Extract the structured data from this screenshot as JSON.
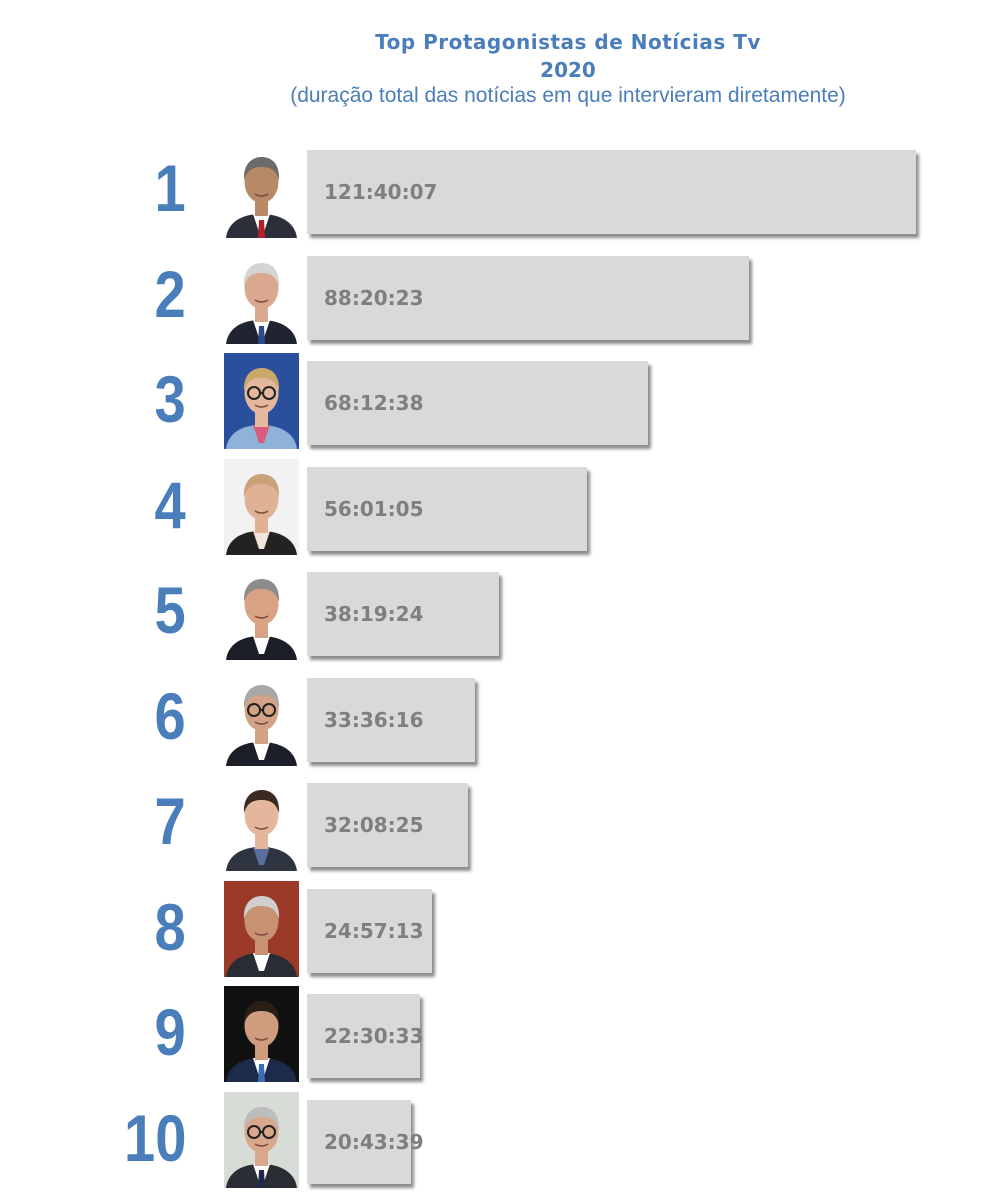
{
  "chart_data": {
    "type": "bar",
    "orientation": "horizontal",
    "title": "Top Protagonistas  de Notícias  Tv",
    "subtitle_year": "2020",
    "subtitle": "(duração total das notícias em que intervieram diretamente)",
    "categories": [
      "1",
      "2",
      "3",
      "4",
      "5",
      "6",
      "7",
      "8",
      "9",
      "10"
    ],
    "labels": [
      "121:40:07",
      "88:20:23",
      "68:12:38",
      "56:01:05",
      "38:19:24",
      "33:36:16",
      "32:08:25",
      "24:57:13",
      "22:30:33",
      "20:43:39"
    ],
    "values_hours": [
      121.669,
      88.34,
      68.211,
      56.018,
      38.323,
      33.604,
      32.14,
      24.954,
      22.509,
      20.728
    ],
    "xlim": [
      0,
      121.669
    ],
    "grid": false,
    "legend": "none",
    "colors": {
      "title": "#4a7ebb",
      "rank": "#4a7ebb",
      "bar": "#d9d9d9",
      "label": "#7f7f7f"
    },
    "photos": [
      {
        "bg": "#ffffff",
        "skin": "#b88966",
        "hair": "#6b6b6b",
        "suit": "#2b2f3a",
        "shirt": "#ffffff",
        "tie": "#b3202a",
        "glasses": false
      },
      {
        "bg": "#ffffff",
        "skin": "#d9a88e",
        "hair": "#d4d4d4",
        "suit": "#1f2430",
        "shirt": "#ffffff",
        "tie": "#2d4a8a",
        "glasses": false
      },
      {
        "bg": "#2a4f9c",
        "skin": "#e3b89c",
        "hair": "#c9a86a",
        "suit": "#8fb2d8",
        "shirt": "#d95c7a",
        "tie": "",
        "glasses": true
      },
      {
        "bg": "#f2f2f2",
        "skin": "#e0b194",
        "hair": "#c9a27a",
        "suit": "#222222",
        "shirt": "#f0e6dc",
        "tie": "",
        "glasses": false
      },
      {
        "bg": "#ffffff",
        "skin": "#d8a385",
        "hair": "#8c8c8c",
        "suit": "#1b1e26",
        "shirt": "#ffffff",
        "tie": "",
        "glasses": false
      },
      {
        "bg": "#ffffff",
        "skin": "#d2a386",
        "hair": "#a8a8a8",
        "suit": "#1c1f27",
        "shirt": "#ffffff",
        "tie": "",
        "glasses": true
      },
      {
        "bg": "#ffffff",
        "skin": "#e4b79c",
        "hair": "#3a2a22",
        "suit": "#2f3540",
        "shirt": "#5a6ea0",
        "tie": "",
        "glasses": false
      },
      {
        "bg": "#9c3a2a",
        "skin": "#c99273",
        "hair": "#cfcfcf",
        "suit": "#2a2d33",
        "shirt": "#ffffff",
        "tie": "",
        "glasses": false
      },
      {
        "bg": "#111111",
        "skin": "#cf9c7e",
        "hair": "#2a1e18",
        "suit": "#1e2a4a",
        "shirt": "#ffffff",
        "tie": "#3a6fb5",
        "glasses": false
      },
      {
        "bg": "#d8dcd6",
        "skin": "#d7a88c",
        "hair": "#bdbdbd",
        "suit": "#2a2d33",
        "shirt": "#ffffff",
        "tie": "#1e2a4a",
        "glasses": true
      }
    ]
  }
}
